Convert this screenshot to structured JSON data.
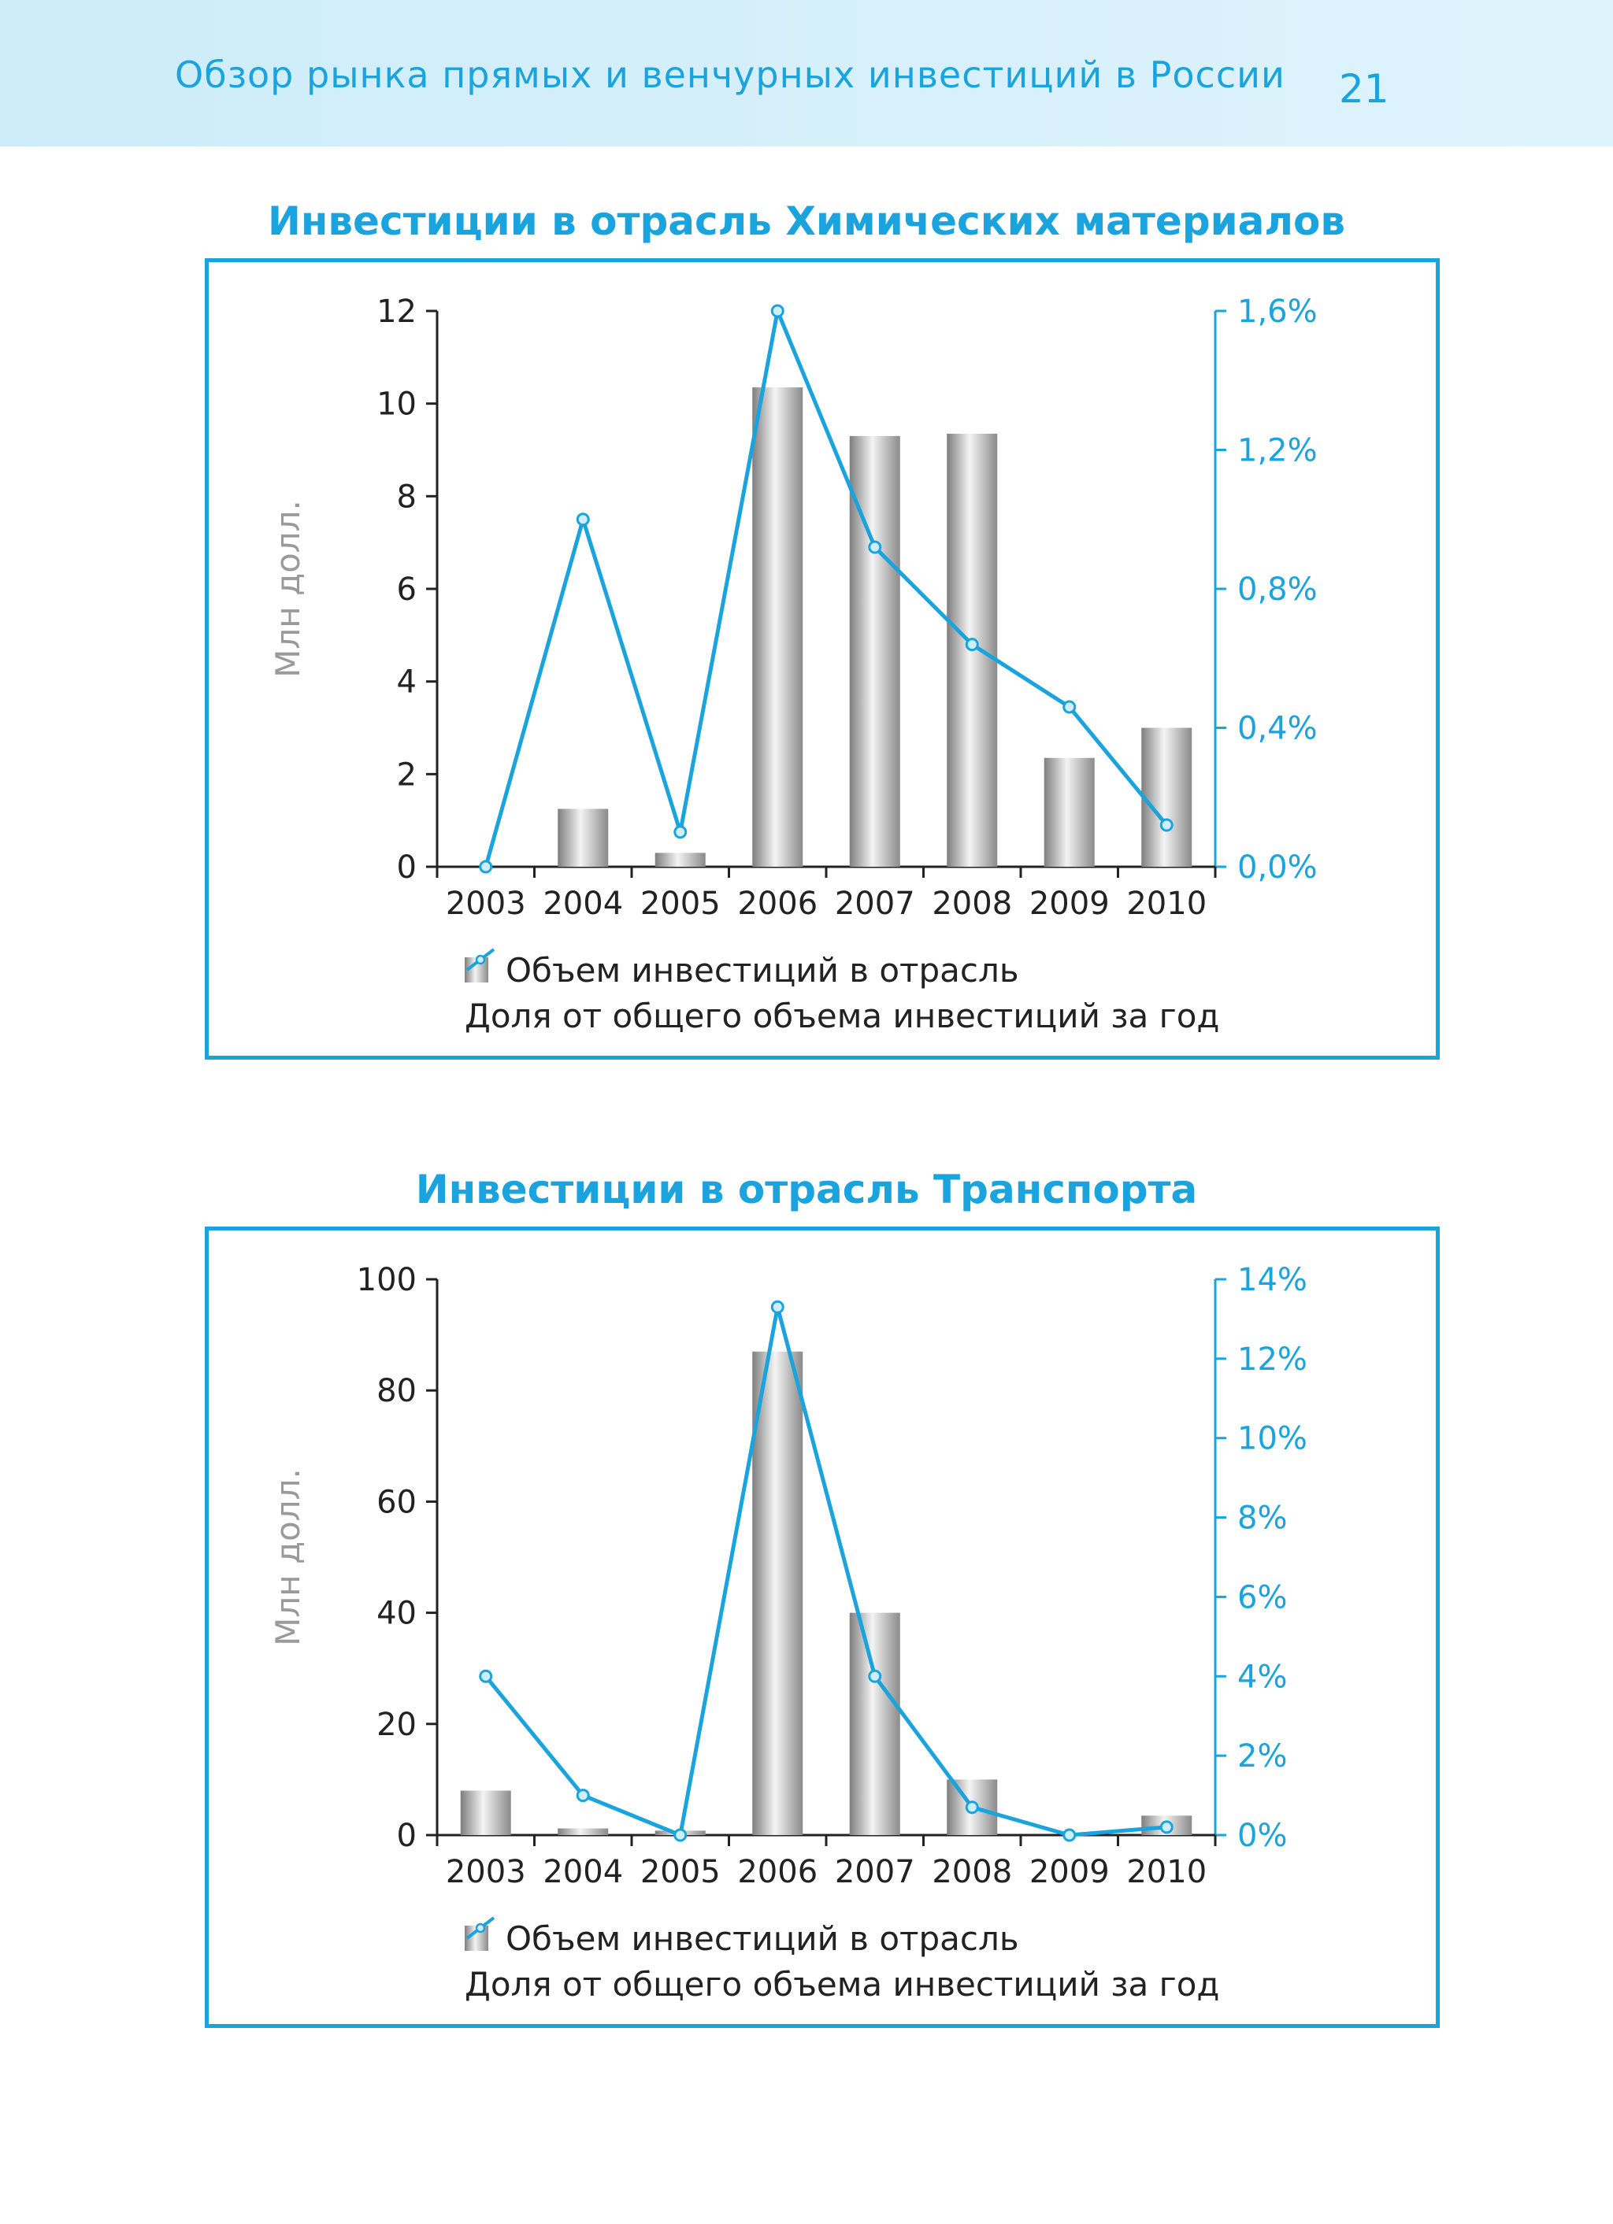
{
  "header": {
    "title": "Обзор рынка прямых и венчурных инвестиций в России",
    "page_number": "21"
  },
  "colors": {
    "accent": "#1aa3dd",
    "bar_dark": "#7e7e7e",
    "bar_light": "#f4f4f4",
    "axis": "#222222"
  },
  "chart_data": [
    {
      "type": "bar",
      "title": "Инвестиции в отрасль Химических материалов",
      "categories": [
        "2003",
        "2004",
        "2005",
        "2006",
        "2007",
        "2008",
        "2009",
        "2010"
      ],
      "ylabel": "Млн долл.",
      "ylim": [
        0,
        12
      ],
      "yticks": [
        0,
        2,
        4,
        6,
        8,
        10,
        12
      ],
      "y2lim": [
        0,
        1.6
      ],
      "y2ticks": [
        0,
        0.4,
        0.8,
        1.2,
        1.6
      ],
      "y2tick_labels": [
        "0,0%",
        "0,4%",
        "0,8%",
        "1,2%",
        "1,6%"
      ],
      "series": [
        {
          "name": "Объем инвестиций в отрасль",
          "type": "bar",
          "axis": "left",
          "values": [
            0,
            1.25,
            0.3,
            10.35,
            9.3,
            9.35,
            2.35,
            3.0
          ]
        },
        {
          "name": "Доля от общего объема инвестиций за год",
          "type": "line",
          "axis": "right",
          "values": [
            0.0,
            1.0,
            0.1,
            1.6,
            0.92,
            0.64,
            0.46,
            0.12
          ]
        }
      ]
    },
    {
      "type": "bar",
      "title": "Инвестиции в отрасль Транспорта",
      "categories": [
        "2003",
        "2004",
        "2005",
        "2006",
        "2007",
        "2008",
        "2009",
        "2010"
      ],
      "ylabel": "Млн долл.",
      "ylim": [
        0,
        100
      ],
      "yticks": [
        0,
        20,
        40,
        60,
        80,
        100
      ],
      "y2lim": [
        0,
        14
      ],
      "y2ticks": [
        0,
        2,
        4,
        6,
        8,
        10,
        12,
        14
      ],
      "y2tick_labels": [
        "0%",
        "2%",
        "4%",
        "6%",
        "8%",
        "10%",
        "12%",
        "14%"
      ],
      "series": [
        {
          "name": "Объем инвестиций в отрасль",
          "type": "bar",
          "axis": "left",
          "values": [
            8,
            1.2,
            0.8,
            87,
            40,
            10,
            0,
            3.5
          ]
        },
        {
          "name": "Доля от общего объема инвестиций за год",
          "type": "line",
          "axis": "right",
          "values": [
            4.0,
            1.0,
            0.0,
            13.3,
            4.0,
            0.7,
            0.0,
            0.2
          ]
        }
      ]
    }
  ]
}
